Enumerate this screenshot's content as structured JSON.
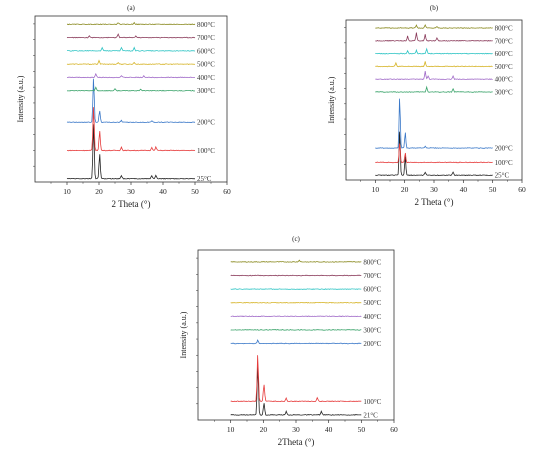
{
  "chart_data": [
    {
      "type": "line",
      "title": "(a)",
      "xlabel": "2 Theta (°)",
      "ylabel": "Intensity (a.u.)",
      "xlim": [
        0,
        60
      ],
      "xticks": [
        10,
        20,
        30,
        40,
        50,
        60
      ],
      "xrange": [
        10,
        50
      ],
      "grid": false,
      "series": [
        {
          "name": "25°C",
          "color": "#222222",
          "base": 0.02,
          "peaks": [
            [
              18.3,
              0.34
            ],
            [
              20.2,
              0.15
            ],
            [
              27.0,
              0.02
            ],
            [
              36.5,
              0.02
            ],
            [
              37.8,
              0.02
            ]
          ]
        },
        {
          "name": "100°C",
          "color": "#e63b3b",
          "base": 0.19,
          "peaks": [
            [
              18.3,
              0.27
            ],
            [
              20.2,
              0.12
            ],
            [
              27.0,
              0.02
            ],
            [
              36.5,
              0.02
            ],
            [
              37.8,
              0.02
            ]
          ]
        },
        {
          "name": "200°C",
          "color": "#3a78c8",
          "base": 0.36,
          "peaks": [
            [
              18.3,
              0.27
            ],
            [
              20.2,
              0.07
            ],
            [
              27.0,
              0.01
            ],
            [
              36.5,
              0.01
            ]
          ]
        },
        {
          "name": "300°C",
          "color": "#3aa36a",
          "base": 0.55,
          "peaks": [
            [
              19.0,
              0.02
            ],
            [
              25.0,
              0.01
            ],
            [
              33.0,
              0.01
            ]
          ]
        },
        {
          "name": "400°C",
          "color": "#a06ac8",
          "base": 0.63,
          "peaks": [
            [
              19.0,
              0.02
            ],
            [
              27.0,
              0.01
            ],
            [
              34.0,
              0.01
            ]
          ]
        },
        {
          "name": "500°C",
          "color": "#d6b428",
          "base": 0.71,
          "peaks": [
            [
              20.0,
              0.02
            ],
            [
              26.0,
              0.01
            ],
            [
              31.0,
              0.01
            ]
          ]
        },
        {
          "name": "600°C",
          "color": "#2ec4c4",
          "base": 0.79,
          "peaks": [
            [
              21.0,
              0.02
            ],
            [
              27.0,
              0.02
            ],
            [
              31.0,
              0.02
            ]
          ]
        },
        {
          "name": "700°C",
          "color": "#8a3a5a",
          "base": 0.87,
          "peaks": [
            [
              17.0,
              0.01
            ],
            [
              26.0,
              0.02
            ],
            [
              31.5,
              0.01
            ]
          ]
        },
        {
          "name": "800°C",
          "color": "#8a8a20",
          "base": 0.95,
          "peaks": [
            [
              26.0,
              0.01
            ],
            [
              31.0,
              0.01
            ]
          ]
        }
      ]
    },
    {
      "type": "line",
      "title": "(b)",
      "xlabel": "2 Theta (°)",
      "ylabel": "Intensity (a.u.)",
      "xlim": [
        0,
        60
      ],
      "xticks": [
        10,
        20,
        30,
        40,
        50,
        60
      ],
      "xrange": [
        10,
        50
      ],
      "grid": false,
      "series": [
        {
          "name": "25°C",
          "color": "#222222",
          "base": 0.03,
          "peaks": [
            [
              18.3,
              0.28
            ],
            [
              20.2,
              0.12
            ],
            [
              27.0,
              0.02
            ],
            [
              36.5,
              0.02
            ]
          ]
        },
        {
          "name": "100°C",
          "color": "#e63b3b",
          "base": 0.11,
          "peaks": [
            [
              18.3,
              0.12
            ],
            [
              20.2,
              0.06
            ]
          ]
        },
        {
          "name": "200°C",
          "color": "#3a78c8",
          "base": 0.2,
          "peaks": [
            [
              18.3,
              0.32
            ],
            [
              20.2,
              0.1
            ],
            [
              27.0,
              0.01
            ]
          ]
        },
        {
          "name": "300°C",
          "color": "#3aa36a",
          "base": 0.55,
          "peaks": [
            [
              27.5,
              0.03
            ],
            [
              36.5,
              0.02
            ]
          ]
        },
        {
          "name": "400°C",
          "color": "#a06ac8",
          "base": 0.63,
          "peaks": [
            [
              27.0,
              0.05
            ],
            [
              28.0,
              0.02
            ],
            [
              36.5,
              0.02
            ]
          ]
        },
        {
          "name": "500°C",
          "color": "#d6b428",
          "base": 0.71,
          "peaks": [
            [
              17.0,
              0.02
            ],
            [
              27.0,
              0.03
            ]
          ]
        },
        {
          "name": "600°C",
          "color": "#2ec4c4",
          "base": 0.79,
          "peaks": [
            [
              21.0,
              0.02
            ],
            [
              24.0,
              0.02
            ],
            [
              27.5,
              0.03
            ]
          ]
        },
        {
          "name": "700°C",
          "color": "#8a3a5a",
          "base": 0.87,
          "peaks": [
            [
              21.0,
              0.03
            ],
            [
              24.0,
              0.05
            ],
            [
              27.0,
              0.04
            ],
            [
              31.0,
              0.02
            ]
          ]
        },
        {
          "name": "800°C",
          "color": "#8a8a20",
          "base": 0.95,
          "peaks": [
            [
              24.0,
              0.02
            ],
            [
              27.0,
              0.02
            ],
            [
              31.0,
              0.01
            ]
          ]
        }
      ]
    },
    {
      "type": "line",
      "title": "(c)",
      "xlabel": "2Theta (°)",
      "ylabel": "Intensity (a.u.)",
      "xlim": [
        0,
        60
      ],
      "xticks": [
        10,
        20,
        30,
        40,
        50,
        60
      ],
      "xrange": [
        10,
        50
      ],
      "grid": false,
      "series": [
        {
          "name": "21°C",
          "color": "#222222",
          "base": 0.03,
          "peaks": [
            [
              18.3,
              0.3
            ],
            [
              20.2,
              0.07
            ],
            [
              27.0,
              0.02
            ],
            [
              37.8,
              0.02
            ]
          ]
        },
        {
          "name": "100°C",
          "color": "#e63b3b",
          "base": 0.11,
          "peaks": [
            [
              18.3,
              0.28
            ],
            [
              20.2,
              0.1
            ],
            [
              27.0,
              0.02
            ],
            [
              36.5,
              0.02
            ]
          ]
        },
        {
          "name": "200°C",
          "color": "#3a78c8",
          "base": 0.45,
          "peaks": [
            [
              18.3,
              0.02
            ]
          ]
        },
        {
          "name": "300°C",
          "color": "#3aa36a",
          "base": 0.53,
          "peaks": []
        },
        {
          "name": "400°C",
          "color": "#a06ac8",
          "base": 0.61,
          "peaks": []
        },
        {
          "name": "500°C",
          "color": "#d6b428",
          "base": 0.69,
          "peaks": []
        },
        {
          "name": "600°C",
          "color": "#2ec4c4",
          "base": 0.77,
          "peaks": []
        },
        {
          "name": "700°C",
          "color": "#8a3a5a",
          "base": 0.85,
          "peaks": []
        },
        {
          "name": "800°C",
          "color": "#8a8a20",
          "base": 0.93,
          "peaks": [
            [
              31.0,
              0.01
            ]
          ]
        }
      ]
    }
  ]
}
